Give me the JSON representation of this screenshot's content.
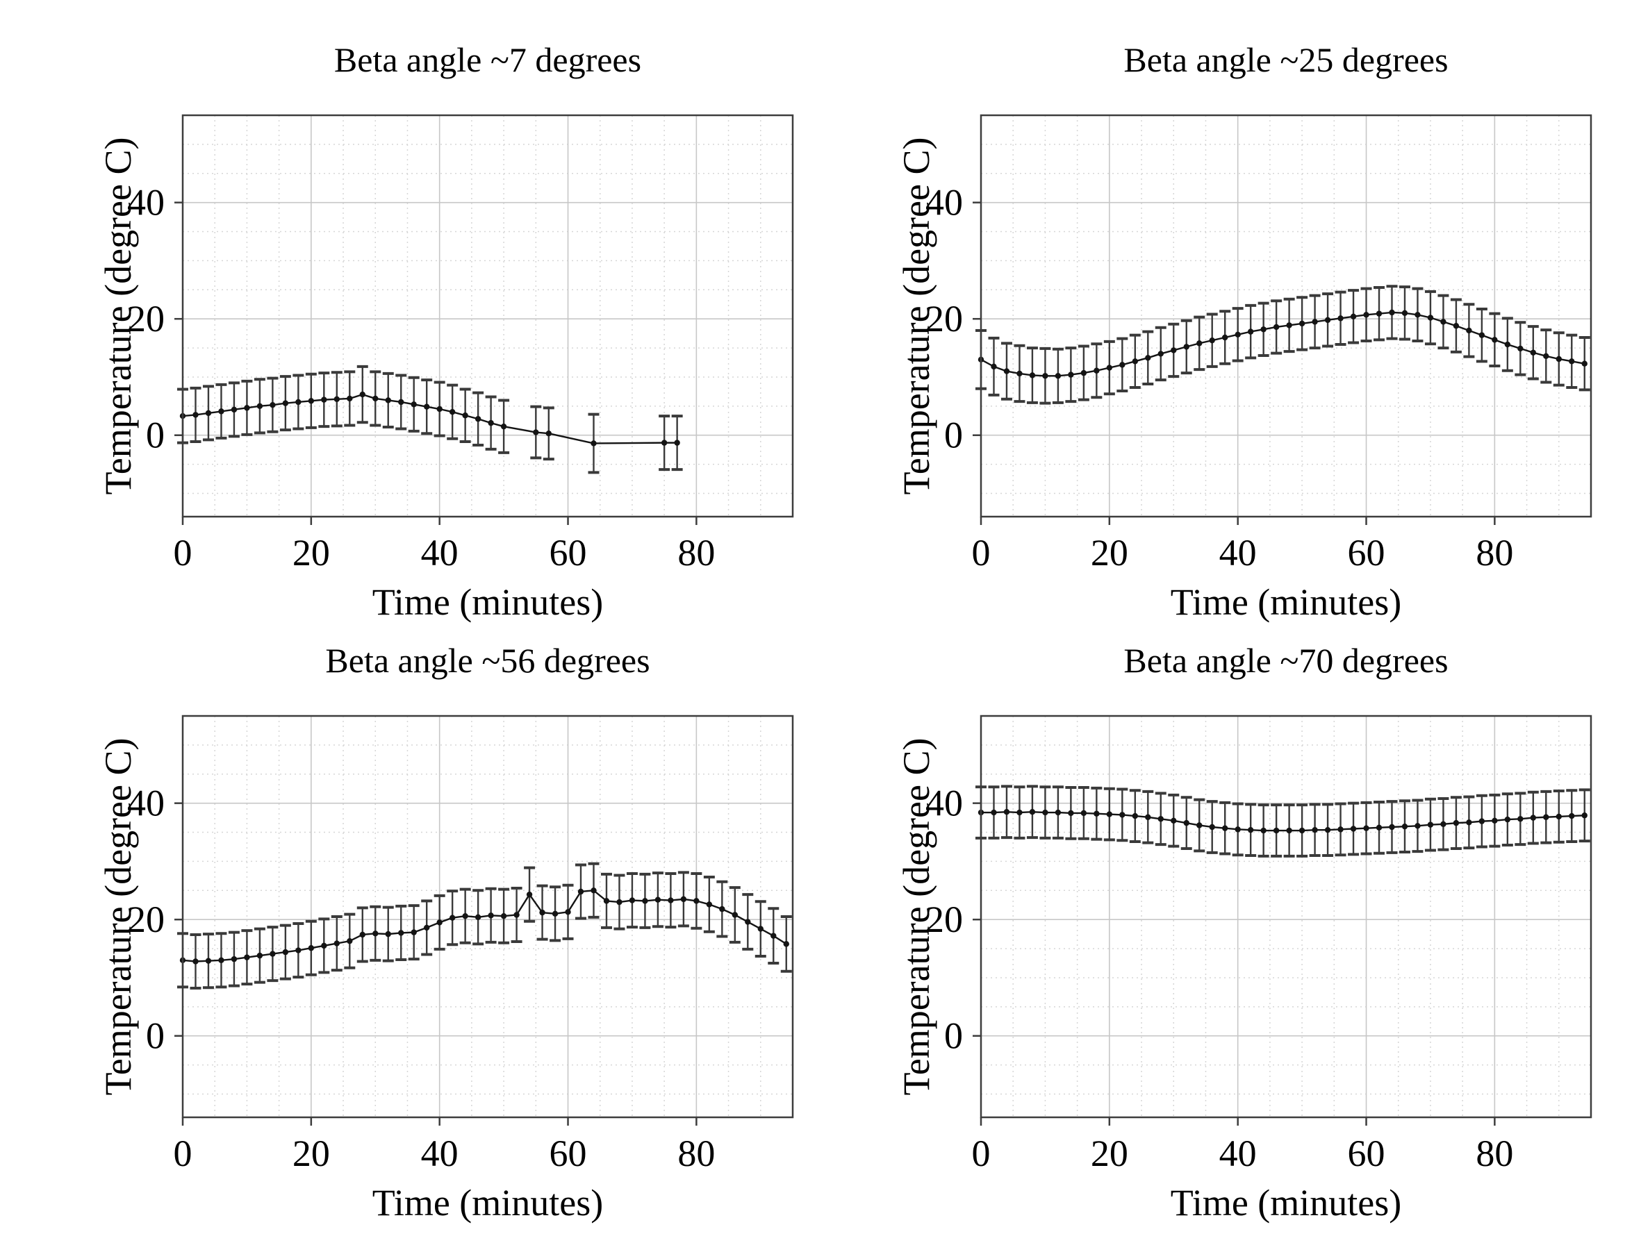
{
  "style": {
    "background": "#ffffff",
    "line_color": "#141414",
    "marker_color": "#141414",
    "errorbar_color": "#3a3a3a",
    "grid_major_color": "#c7c7c7",
    "grid_minor_color": "#d6d6d6",
    "box_color": "#3d3d3d",
    "text_color": "#000000"
  },
  "chart_data": [
    {
      "type": "line",
      "title": "Beta angle ~7 degrees",
      "xlabel": "Time (minutes)",
      "ylabel": "Temperature (degree C)",
      "xlim": [
        0,
        95
      ],
      "ylim": [
        -14,
        55
      ],
      "xticks": [
        0,
        20,
        40,
        60,
        80
      ],
      "yticks": [
        0,
        20,
        40
      ],
      "minor_step": 5,
      "grid": "on",
      "legend": "none",
      "x": [
        0,
        2,
        4,
        6,
        8,
        10,
        12,
        14,
        16,
        18,
        20,
        22,
        24,
        26,
        28,
        30,
        32,
        34,
        36,
        38,
        40,
        42,
        44,
        46,
        48,
        50,
        55,
        57,
        64,
        75,
        77
      ],
      "y": [
        3.3,
        3.5,
        3.8,
        4.1,
        4.4,
        4.7,
        5.0,
        5.2,
        5.5,
        5.7,
        5.9,
        6.1,
        6.2,
        6.3,
        7.0,
        6.3,
        6.0,
        5.7,
        5.3,
        4.9,
        4.5,
        4.0,
        3.4,
        2.8,
        2.1,
        1.5,
        0.5,
        0.3,
        -1.4,
        -1.3,
        -1.3
      ],
      "yerr": [
        4.6,
        4.6,
        4.6,
        4.6,
        4.6,
        4.6,
        4.6,
        4.6,
        4.6,
        4.6,
        4.6,
        4.6,
        4.6,
        4.6,
        4.8,
        4.6,
        4.6,
        4.6,
        4.6,
        4.6,
        4.6,
        4.6,
        4.5,
        4.5,
        4.5,
        4.5,
        4.4,
        4.4,
        5.0,
        4.6,
        4.6
      ]
    },
    {
      "type": "line",
      "title": "Beta angle ~25 degrees",
      "xlabel": "Time (minutes)",
      "ylabel": "Temperature (degree C)",
      "xlim": [
        0,
        95
      ],
      "ylim": [
        -14,
        55
      ],
      "xticks": [
        0,
        20,
        40,
        60,
        80
      ],
      "yticks": [
        0,
        20,
        40
      ],
      "minor_step": 5,
      "grid": "on",
      "legend": "none",
      "x": [
        0,
        2,
        4,
        6,
        8,
        10,
        12,
        14,
        16,
        18,
        20,
        22,
        24,
        26,
        28,
        30,
        32,
        34,
        36,
        38,
        40,
        42,
        44,
        46,
        48,
        50,
        52,
        54,
        56,
        58,
        60,
        62,
        64,
        66,
        68,
        70,
        72,
        74,
        76,
        78,
        80,
        82,
        84,
        86,
        88,
        90,
        92,
        94
      ],
      "y": [
        13.0,
        11.8,
        11.0,
        10.6,
        10.3,
        10.2,
        10.2,
        10.4,
        10.7,
        11.1,
        11.6,
        12.1,
        12.7,
        13.3,
        14.0,
        14.6,
        15.2,
        15.8,
        16.3,
        16.8,
        17.3,
        17.8,
        18.2,
        18.6,
        18.9,
        19.2,
        19.5,
        19.8,
        20.1,
        20.4,
        20.7,
        20.9,
        21.1,
        21.0,
        20.7,
        20.2,
        19.5,
        18.8,
        18.0,
        17.2,
        16.4,
        15.6,
        14.9,
        14.2,
        13.6,
        13.1,
        12.7,
        12.3
      ],
      "yerr": [
        5.0,
        4.9,
        4.8,
        4.8,
        4.7,
        4.7,
        4.6,
        4.6,
        4.6,
        4.6,
        4.5,
        4.5,
        4.5,
        4.5,
        4.5,
        4.5,
        4.5,
        4.5,
        4.5,
        4.5,
        4.5,
        4.5,
        4.5,
        4.5,
        4.5,
        4.5,
        4.5,
        4.5,
        4.5,
        4.5,
        4.5,
        4.5,
        4.5,
        4.5,
        4.5,
        4.5,
        4.5,
        4.5,
        4.5,
        4.5,
        4.5,
        4.5,
        4.5,
        4.5,
        4.5,
        4.5,
        4.5,
        4.5
      ]
    },
    {
      "type": "line",
      "title": "Beta angle ~56 degrees",
      "xlabel": "Time (minutes)",
      "ylabel": "Temperature (degree C)",
      "xlim": [
        0,
        95
      ],
      "ylim": [
        -14,
        55
      ],
      "xticks": [
        0,
        20,
        40,
        60,
        80
      ],
      "yticks": [
        0,
        20,
        40
      ],
      "minor_step": 5,
      "grid": "on",
      "legend": "none",
      "x": [
        0,
        2,
        4,
        6,
        8,
        10,
        12,
        14,
        16,
        18,
        20,
        22,
        24,
        26,
        28,
        30,
        32,
        34,
        36,
        38,
        40,
        42,
        44,
        46,
        48,
        50,
        52,
        54,
        56,
        58,
        60,
        62,
        64,
        66,
        68,
        70,
        72,
        74,
        76,
        78,
        80,
        82,
        84,
        86,
        88,
        90,
        92,
        94
      ],
      "y": [
        13.0,
        12.8,
        12.9,
        13.0,
        13.2,
        13.5,
        13.8,
        14.1,
        14.4,
        14.7,
        15.1,
        15.5,
        15.9,
        16.3,
        17.4,
        17.6,
        17.5,
        17.7,
        17.8,
        18.6,
        19.5,
        20.3,
        20.6,
        20.4,
        20.7,
        20.6,
        20.8,
        24.3,
        21.2,
        21.0,
        21.3,
        24.8,
        25.0,
        23.2,
        23.0,
        23.3,
        23.2,
        23.4,
        23.3,
        23.5,
        23.2,
        22.6,
        21.8,
        20.8,
        19.6,
        18.4,
        17.2,
        15.8
      ],
      "yerr": [
        4.6,
        4.6,
        4.6,
        4.6,
        4.6,
        4.6,
        4.6,
        4.6,
        4.6,
        4.6,
        4.6,
        4.6,
        4.6,
        4.6,
        4.6,
        4.6,
        4.6,
        4.6,
        4.6,
        4.6,
        4.6,
        4.6,
        4.6,
        4.6,
        4.6,
        4.6,
        4.6,
        4.6,
        4.6,
        4.6,
        4.6,
        4.6,
        4.6,
        4.6,
        4.6,
        4.6,
        4.6,
        4.6,
        4.6,
        4.6,
        4.7,
        4.7,
        4.7,
        4.7,
        4.7,
        4.7,
        4.7,
        4.7
      ]
    },
    {
      "type": "line",
      "title": "Beta angle ~70 degrees",
      "xlabel": "Time (minutes)",
      "ylabel": "Temperature (degree C)",
      "xlim": [
        0,
        95
      ],
      "ylim": [
        -14,
        55
      ],
      "xticks": [
        0,
        20,
        40,
        60,
        80
      ],
      "yticks": [
        0,
        20,
        40
      ],
      "minor_step": 5,
      "grid": "on",
      "legend": "none",
      "x": [
        0,
        2,
        4,
        6,
        8,
        10,
        12,
        14,
        16,
        18,
        20,
        22,
        24,
        26,
        28,
        30,
        32,
        34,
        36,
        38,
        40,
        42,
        44,
        46,
        48,
        50,
        52,
        54,
        56,
        58,
        60,
        62,
        64,
        66,
        68,
        70,
        72,
        74,
        76,
        78,
        80,
        82,
        84,
        86,
        88,
        90,
        92,
        94
      ],
      "y": [
        38.4,
        38.4,
        38.5,
        38.4,
        38.5,
        38.4,
        38.4,
        38.3,
        38.3,
        38.2,
        38.1,
        38.0,
        37.8,
        37.6,
        37.3,
        37.0,
        36.6,
        36.2,
        35.9,
        35.7,
        35.5,
        35.4,
        35.3,
        35.3,
        35.3,
        35.3,
        35.4,
        35.4,
        35.5,
        35.6,
        35.7,
        35.8,
        35.9,
        36.0,
        36.1,
        36.3,
        36.4,
        36.6,
        36.7,
        36.9,
        37.0,
        37.2,
        37.3,
        37.5,
        37.6,
        37.7,
        37.8,
        37.9
      ],
      "yerr": [
        4.4,
        4.4,
        4.4,
        4.4,
        4.4,
        4.4,
        4.4,
        4.4,
        4.4,
        4.4,
        4.4,
        4.4,
        4.4,
        4.4,
        4.4,
        4.4,
        4.4,
        4.4,
        4.4,
        4.4,
        4.4,
        4.4,
        4.4,
        4.4,
        4.4,
        4.4,
        4.4,
        4.4,
        4.4,
        4.4,
        4.4,
        4.4,
        4.4,
        4.4,
        4.4,
        4.4,
        4.4,
        4.4,
        4.4,
        4.4,
        4.4,
        4.4,
        4.4,
        4.4,
        4.4,
        4.4,
        4.4,
        4.4
      ]
    }
  ]
}
